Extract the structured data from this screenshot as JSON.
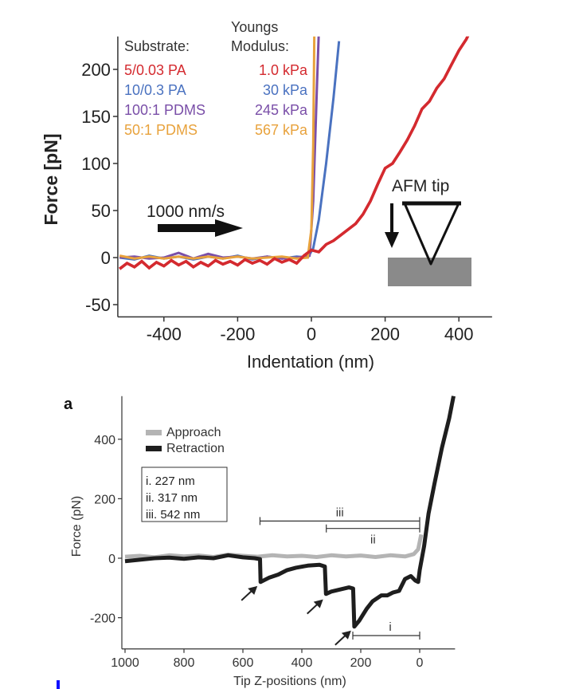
{
  "chart_data": [
    {
      "type": "line",
      "xlabel": "Indentation (nm)",
      "ylabel": "Force [pN]",
      "xlim": [
        -525,
        490
      ],
      "ylim": [
        -63,
        235
      ],
      "xticks": [
        -400,
        -200,
        0,
        200,
        400
      ],
      "yticks": [
        -50,
        0,
        50,
        100,
        150,
        200
      ],
      "grid": false,
      "legend": {
        "placement": "top-left",
        "header_substrate": "Substrate:",
        "header_modulus_1": "Youngs",
        "header_modulus_2": "Modulus:"
      },
      "annotations": {
        "speed": "1000 nm/s",
        "tip_label": "AFM tip"
      },
      "series": [
        {
          "name": "5/0.03 PA",
          "modulus": "1.0 kPa",
          "color": "#d42a2f",
          "points": [
            [
              -520,
              -12
            ],
            [
              -500,
              -6
            ],
            [
              -480,
              -10
            ],
            [
              -460,
              -4
            ],
            [
              -440,
              -11
            ],
            [
              -420,
              -5
            ],
            [
              -400,
              -9
            ],
            [
              -380,
              -3
            ],
            [
              -360,
              -8
            ],
            [
              -340,
              -4
            ],
            [
              -320,
              -10
            ],
            [
              -300,
              -5
            ],
            [
              -280,
              -9
            ],
            [
              -260,
              -3
            ],
            [
              -240,
              -7
            ],
            [
              -220,
              -4
            ],
            [
              -200,
              -8
            ],
            [
              -180,
              -2
            ],
            [
              -160,
              -6
            ],
            [
              -140,
              -3
            ],
            [
              -120,
              -7
            ],
            [
              -100,
              -1
            ],
            [
              -80,
              -5
            ],
            [
              -60,
              -2
            ],
            [
              -40,
              -6
            ],
            [
              -20,
              2
            ],
            [
              0,
              8
            ],
            [
              20,
              6
            ],
            [
              40,
              14
            ],
            [
              60,
              18
            ],
            [
              80,
              24
            ],
            [
              100,
              30
            ],
            [
              120,
              36
            ],
            [
              140,
              46
            ],
            [
              160,
              60
            ],
            [
              180,
              78
            ],
            [
              200,
              95
            ],
            [
              220,
              100
            ],
            [
              240,
              112
            ],
            [
              260,
              125
            ],
            [
              280,
              140
            ],
            [
              300,
              158
            ],
            [
              320,
              166
            ],
            [
              340,
              180
            ],
            [
              360,
              190
            ],
            [
              380,
              205
            ],
            [
              400,
              220
            ],
            [
              420,
              232
            ],
            [
              430,
              240
            ]
          ]
        },
        {
          "name": "10/0.3 PA",
          "modulus": "30 kPa",
          "color": "#4a72c0",
          "points": [
            [
              -520,
              0
            ],
            [
              -480,
              -2
            ],
            [
              -440,
              2
            ],
            [
              -400,
              -1
            ],
            [
              -360,
              1
            ],
            [
              -320,
              -2
            ],
            [
              -280,
              1
            ],
            [
              -240,
              -1
            ],
            [
              -200,
              2
            ],
            [
              -160,
              -2
            ],
            [
              -120,
              1
            ],
            [
              -80,
              -1
            ],
            [
              -40,
              1
            ],
            [
              -10,
              0
            ],
            [
              5,
              10
            ],
            [
              20,
              40
            ],
            [
              40,
              100
            ],
            [
              60,
              170
            ],
            [
              75,
              230
            ]
          ]
        },
        {
          "name": "100:1 PDMS",
          "modulus": "245 kPa",
          "color": "#7a4fa8",
          "points": [
            [
              -520,
              0
            ],
            [
              -480,
              1
            ],
            [
              -440,
              -1
            ],
            [
              -400,
              0
            ],
            [
              -360,
              5
            ],
            [
              -320,
              -1
            ],
            [
              -280,
              4
            ],
            [
              -240,
              0
            ],
            [
              -200,
              1
            ],
            [
              -160,
              -1
            ],
            [
              -120,
              1
            ],
            [
              -80,
              -1
            ],
            [
              -40,
              0
            ],
            [
              -5,
              2
            ],
            [
              5,
              60
            ],
            [
              15,
              180
            ],
            [
              20,
              240
            ]
          ]
        },
        {
          "name": "50:1 PDMS",
          "modulus": "567 kPa",
          "color": "#e8a23c",
          "points": [
            [
              -520,
              2
            ],
            [
              -480,
              -1
            ],
            [
              -440,
              1
            ],
            [
              -400,
              -1
            ],
            [
              -360,
              1
            ],
            [
              -320,
              -1
            ],
            [
              -280,
              1
            ],
            [
              -240,
              -1
            ],
            [
              -200,
              1
            ],
            [
              -160,
              -1
            ],
            [
              -120,
              0
            ],
            [
              -80,
              1
            ],
            [
              -40,
              -1
            ],
            [
              -10,
              0
            ],
            [
              0,
              30
            ],
            [
              5,
              120
            ],
            [
              8,
              240
            ]
          ]
        }
      ]
    },
    {
      "type": "line",
      "panel_label": "a",
      "xlabel": "Tip Z-positions (nm)",
      "ylabel": "Force (pN)",
      "xlim": [
        1000,
        -120
      ],
      "x_reversed": true,
      "ylim": [
        -305,
        545
      ],
      "xticks": [
        1000,
        800,
        600,
        400,
        200,
        0
      ],
      "yticks": [
        -200,
        0,
        200,
        400
      ],
      "grid": false,
      "legend": {
        "placement": "top-left"
      },
      "distances_box": [
        "i. 227 nm",
        "ii. 317 nm",
        "iii. 542 nm"
      ],
      "brackets": [
        {
          "label": "iii",
          "from": 542,
          "to": 0,
          "force": 125
        },
        {
          "label": "ii",
          "from": 317,
          "to": 0,
          "force": 100
        },
        {
          "label": "i",
          "from": 227,
          "to": 0,
          "force": -260
        }
      ],
      "rupture_arrows": [
        [
          540,
          -80
        ],
        [
          317,
          -125
        ],
        [
          222,
          -230
        ]
      ],
      "series": [
        {
          "name": "Approach",
          "color": "#b4b4b4",
          "points": [
            [
              1000,
              5
            ],
            [
              950,
              8
            ],
            [
              900,
              3
            ],
            [
              850,
              10
            ],
            [
              800,
              6
            ],
            [
              750,
              9
            ],
            [
              700,
              4
            ],
            [
              650,
              12
            ],
            [
              600,
              8
            ],
            [
              550,
              5
            ],
            [
              500,
              10
            ],
            [
              450,
              6
            ],
            [
              400,
              8
            ],
            [
              350,
              4
            ],
            [
              300,
              10
            ],
            [
              250,
              6
            ],
            [
              200,
              9
            ],
            [
              150,
              4
            ],
            [
              100,
              10
            ],
            [
              50,
              6
            ],
            [
              20,
              14
            ],
            [
              5,
              30
            ],
            [
              -5,
              80
            ]
          ]
        },
        {
          "name": "Retraction",
          "color": "#1e1e1e",
          "points": [
            [
              1000,
              -10
            ],
            [
              950,
              -5
            ],
            [
              900,
              0
            ],
            [
              850,
              2
            ],
            [
              800,
              -2
            ],
            [
              750,
              3
            ],
            [
              700,
              0
            ],
            [
              650,
              10
            ],
            [
              600,
              3
            ],
            [
              560,
              0
            ],
            [
              542,
              -3
            ],
            [
              540,
              -80
            ],
            [
              510,
              -65
            ],
            [
              480,
              -55
            ],
            [
              450,
              -40
            ],
            [
              420,
              -32
            ],
            [
              380,
              -25
            ],
            [
              340,
              -22
            ],
            [
              322,
              -28
            ],
            [
              318,
              -120
            ],
            [
              300,
              -112
            ],
            [
              270,
              -105
            ],
            [
              240,
              -98
            ],
            [
              226,
              -102
            ],
            [
              222,
              -230
            ],
            [
              205,
              -210
            ],
            [
              180,
              -170
            ],
            [
              160,
              -145
            ],
            [
              130,
              -125
            ],
            [
              110,
              -125
            ],
            [
              90,
              -115
            ],
            [
              70,
              -110
            ],
            [
              50,
              -70
            ],
            [
              30,
              -60
            ],
            [
              15,
              -75
            ],
            [
              5,
              -80
            ],
            [
              0,
              -40
            ],
            [
              -15,
              40
            ],
            [
              -30,
              150
            ],
            [
              -50,
              250
            ],
            [
              -75,
              370
            ],
            [
              -100,
              470
            ],
            [
              -115,
              545
            ]
          ]
        }
      ]
    }
  ]
}
